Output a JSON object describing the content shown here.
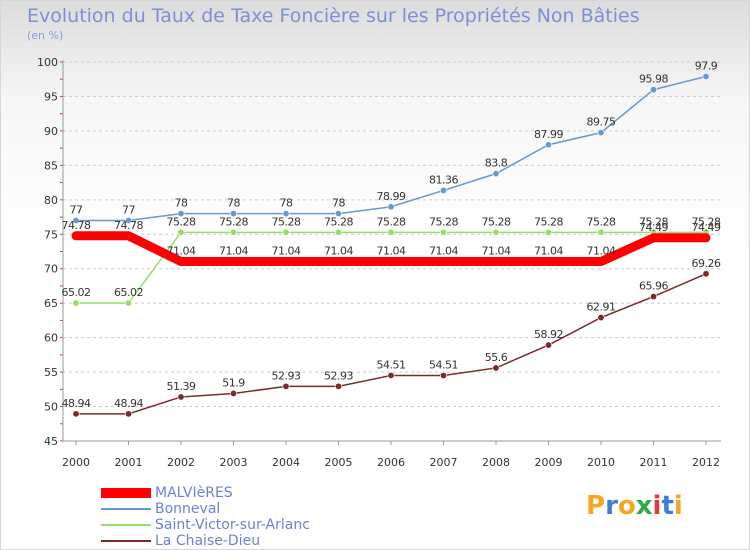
{
  "chart_data": {
    "type": "line",
    "title": "Evolution du Taux de Taxe Foncière sur les Propriétés Non Bâties",
    "subtitle": "(en %)",
    "x": [
      2000,
      2001,
      2002,
      2003,
      2004,
      2005,
      2006,
      2007,
      2008,
      2009,
      2010,
      2011,
      2012
    ],
    "ylim": [
      45,
      100
    ],
    "yticks": [
      45,
      50,
      55,
      60,
      65,
      70,
      75,
      80,
      85,
      90,
      95,
      100
    ],
    "grid": "horizontal dashed",
    "legend": "bottom-left",
    "series": [
      {
        "name": "MALVIèRES",
        "color": "#ff0000",
        "labels": [
          "74.78",
          "74.78",
          "71.04",
          "71.04",
          "71.04",
          "71.04",
          "71.04",
          "71.04",
          "71.04",
          "71.04",
          "71.04",
          "74.49",
          "74.49"
        ],
        "values": [
          74.78,
          74.78,
          71.04,
          71.04,
          71.04,
          71.04,
          71.04,
          71.04,
          71.04,
          71.04,
          71.04,
          74.49,
          74.49
        ]
      },
      {
        "name": "Bonneval",
        "color": "#6699cc",
        "labels": [
          "77",
          "77",
          "78",
          "78",
          "78",
          "78",
          "78.99",
          "81.36",
          "83.8",
          "87.99",
          "89.75",
          "95.98",
          "97.9"
        ],
        "values": [
          77,
          77,
          78,
          78,
          78,
          78,
          78.99,
          81.36,
          83.8,
          87.99,
          89.75,
          95.98,
          97.9
        ]
      },
      {
        "name": "Saint-Victor-sur-Arlanc",
        "color": "#99dd66",
        "labels": [
          "65.02",
          "65.02",
          "75.28",
          "75.28",
          "75.28",
          "75.28",
          "75.28",
          "75.28",
          "75.28",
          "75.28",
          "75.28",
          "75.28",
          "75.28"
        ],
        "values": [
          65.02,
          65.02,
          75.28,
          75.28,
          75.28,
          75.28,
          75.28,
          75.28,
          75.28,
          75.28,
          75.28,
          75.28,
          75.28
        ]
      },
      {
        "name": "La Chaise-Dieu",
        "color": "#7a2a2a",
        "labels": [
          "48.94",
          "48.94",
          "51.39",
          "51.9",
          "52.93",
          "52.93",
          "54.51",
          "54.51",
          "55.6",
          "58.92",
          "62.91",
          "65.96",
          "69.26"
        ],
        "values": [
          48.94,
          48.94,
          51.39,
          51.9,
          52.93,
          52.93,
          54.51,
          54.51,
          55.6,
          58.92,
          62.91,
          65.96,
          69.26
        ]
      }
    ]
  },
  "logo": {
    "letters": [
      "P",
      "r",
      "o",
      "x",
      "i",
      "t",
      "i"
    ],
    "colors": [
      "#f6a623",
      "#3b7dd8",
      "#f6a623",
      "#2eaa4a",
      "#e23b3b",
      "#3b7dd8",
      "#f6a623"
    ]
  }
}
